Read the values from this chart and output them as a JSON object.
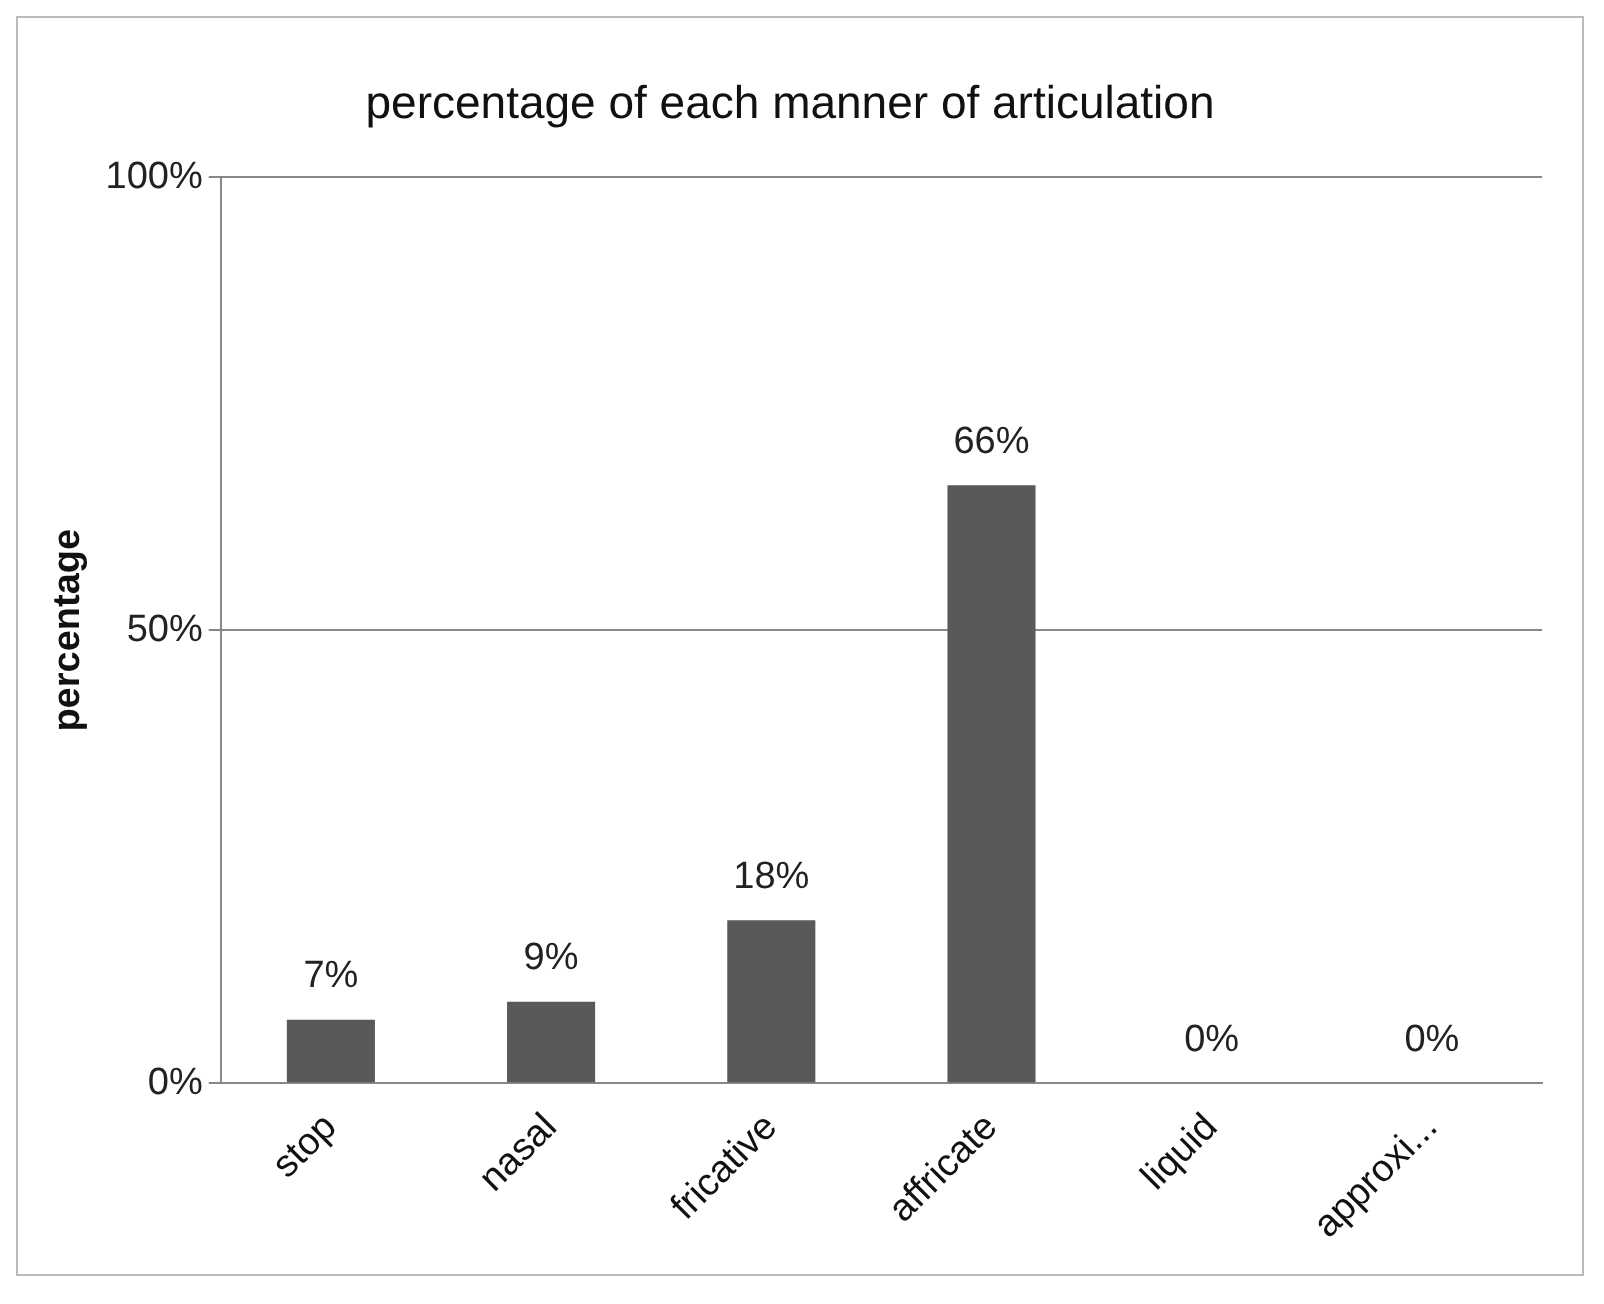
{
  "chart_data": {
    "type": "bar",
    "title": "percentage of each manner of articulation",
    "ylabel": "percentage",
    "categories": [
      "stop",
      "nasal",
      "fricative",
      "affricate",
      "liquid",
      "approxi..."
    ],
    "values": [
      7,
      9,
      18,
      66,
      0,
      0
    ],
    "value_labels": [
      "7%",
      "9%",
      "18%",
      "66%",
      "0%",
      "0%"
    ],
    "color": "#595959",
    "ylim": [
      0,
      100
    ],
    "yticks": [
      {
        "value": 0,
        "label": "0%"
      },
      {
        "value": 50,
        "label": "50%"
      },
      {
        "value": 100,
        "label": "100%"
      }
    ],
    "grid": "y",
    "legend": false
  }
}
